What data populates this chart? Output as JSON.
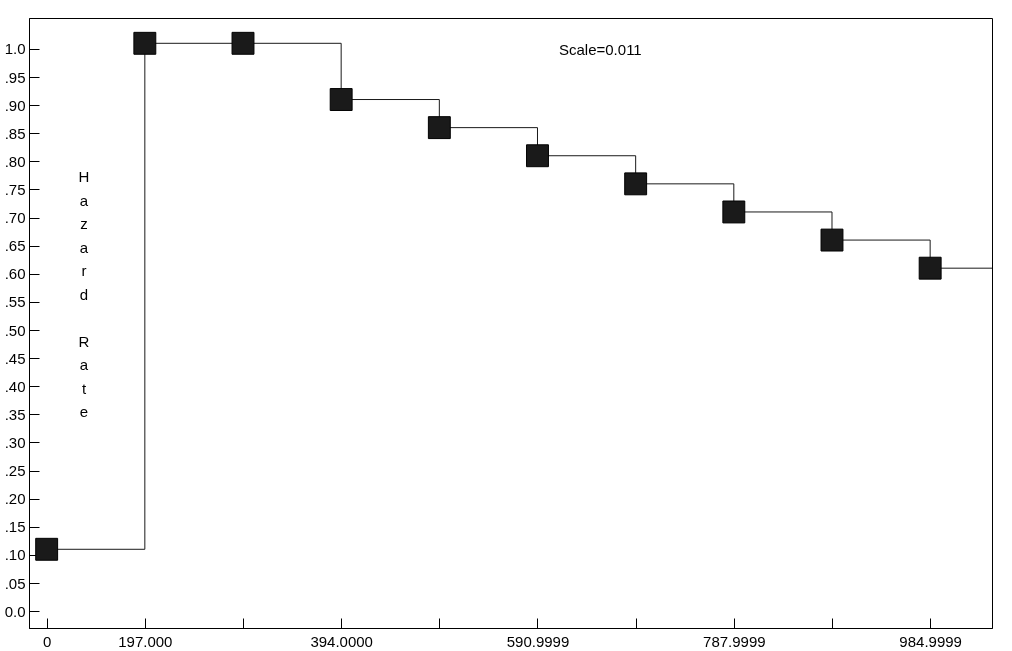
{
  "chart_data": {
    "type": "step",
    "ylabel": "Hazard Rate",
    "annotations": [
      {
        "text": "Scale=0.011"
      }
    ],
    "categories": [
      "0",
      "197.000",
      null,
      "394.0000",
      null,
      "590.9999",
      null,
      "787.9999",
      null,
      "984.9999"
    ],
    "series": [
      {
        "color": "#1a1a1a",
        "values": [
          0.11,
          1.01,
          1.01,
          0.91,
          0.86,
          0.81,
          0.76,
          0.71,
          0.66,
          0.61
        ]
      }
    ],
    "ylim": [
      -0.03,
      1.055
    ],
    "yticks": [
      {
        "value": 0,
        "label": "0.0"
      },
      {
        "value": 0.05,
        "label": ".05"
      },
      {
        "value": 0.1,
        "label": ".10"
      },
      {
        "value": 0.15,
        "label": ".15"
      },
      {
        "value": 0.2,
        "label": ".20"
      },
      {
        "value": 0.25,
        "label": ".25"
      },
      {
        "value": 0.3,
        "label": ".30"
      },
      {
        "value": 0.35,
        "label": ".35"
      },
      {
        "value": 0.4,
        "label": ".40"
      },
      {
        "value": 0.45,
        "label": ".45"
      },
      {
        "value": 0.5,
        "label": ".50"
      },
      {
        "value": 0.55,
        "label": ".55"
      },
      {
        "value": 0.6,
        "label": ".60"
      },
      {
        "value": 0.65,
        "label": ".65"
      },
      {
        "value": 0.7,
        "label": ".70"
      },
      {
        "value": 0.75,
        "label": ".75"
      },
      {
        "value": 0.8,
        "label": ".80"
      },
      {
        "value": 0.85,
        "label": ".85"
      },
      {
        "value": 0.9,
        "label": ".90"
      },
      {
        "value": 0.95,
        "label": ".95"
      },
      {
        "value": 1.0,
        "label": "1.0"
      }
    ],
    "marker": "square",
    "grid": false
  }
}
